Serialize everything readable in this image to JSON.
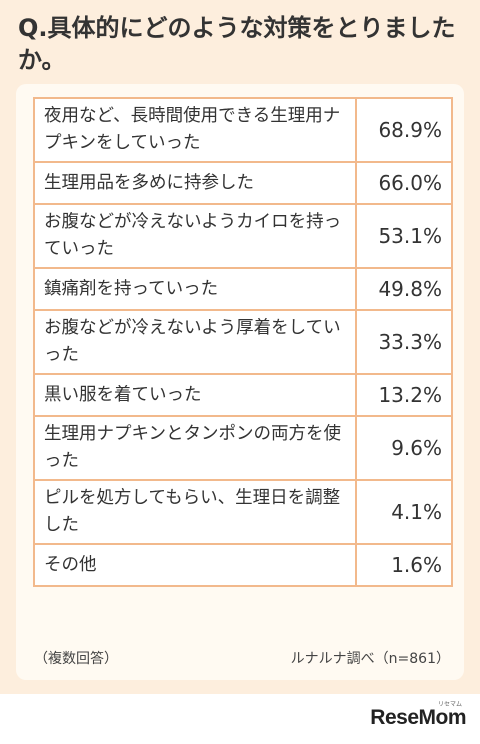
{
  "question": "Q.具体的にどのような対策をとりましたか。",
  "chart_data": {
    "type": "table",
    "rows": [
      {
        "label": "夜用など、長時間使用できる生理用ナプキンをしていった",
        "value": "68.9%"
      },
      {
        "label": "生理用品を多めに持参した",
        "value": "66.0%"
      },
      {
        "label": "お腹などが冷えないようカイロを持っていった",
        "value": "53.1%"
      },
      {
        "label": "鎮痛剤を持っていった",
        "value": "49.8%"
      },
      {
        "label": "お腹などが冷えないよう厚着をしていった",
        "value": "33.3%"
      },
      {
        "label": "黒い服を着ていった",
        "value": "13.2%"
      },
      {
        "label": "生理用ナプキンとタンポンの両方を使った",
        "value": "9.6%"
      },
      {
        "label": "ピルを処方してもらい、生理日を調整した",
        "value": "4.1%"
      },
      {
        "label": "その他",
        "value": "1.6%"
      }
    ]
  },
  "footnote_left": "（複数回答）",
  "footnote_right": "ルナルナ調べ（n=861）",
  "brand": "ReseMom",
  "brand_kana": "リセマム"
}
